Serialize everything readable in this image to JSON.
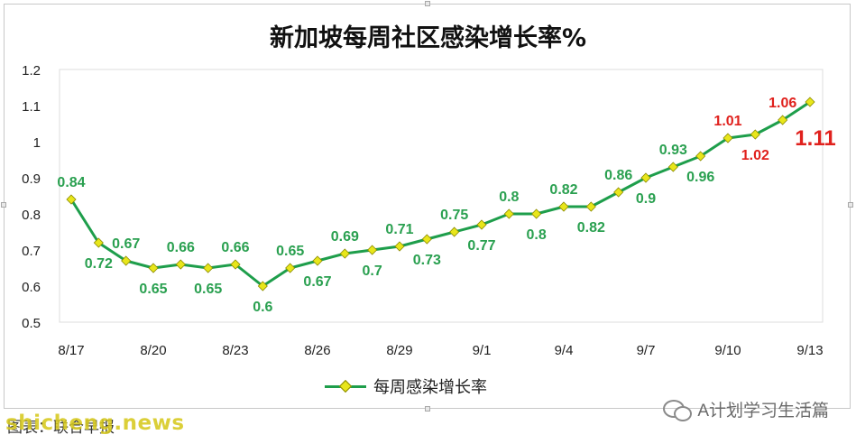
{
  "chart_data": {
    "type": "line",
    "title": "新加坡每周社区感染增长率%",
    "categories": [
      "8/17",
      "8/18",
      "8/19",
      "8/20",
      "8/21",
      "8/22",
      "8/23",
      "8/24",
      "8/25",
      "8/26",
      "8/27",
      "8/28",
      "8/29",
      "8/30",
      "8/31",
      "9/1",
      "9/2",
      "9/3",
      "9/4",
      "9/5",
      "9/6",
      "9/7",
      "9/8",
      "9/9",
      "9/10",
      "9/11",
      "9/12",
      "9/13"
    ],
    "x_tick_labels": [
      "8/17",
      "8/20",
      "8/23",
      "8/26",
      "8/29",
      "9/1",
      "9/4",
      "9/7",
      "9/10",
      "9/13"
    ],
    "y_tick_labels": [
      "0.5",
      "0.6",
      "0.7",
      "0.8",
      "0.9",
      "1",
      "1.1",
      "1.2"
    ],
    "ylim": [
      0.5,
      1.2
    ],
    "series": [
      {
        "name": "每周感染增长率",
        "values": [
          0.84,
          0.72,
          0.67,
          0.65,
          0.66,
          0.65,
          0.66,
          0.6,
          0.65,
          0.67,
          0.69,
          0.7,
          0.71,
          0.73,
          0.75,
          0.77,
          0.8,
          0.8,
          0.82,
          0.82,
          0.86,
          0.9,
          0.93,
          0.96,
          1.01,
          1.02,
          1.06,
          1.11
        ],
        "data_labels": [
          "0.84",
          "0.72",
          "0.67",
          "0.65",
          "0.66",
          "0.65",
          "0.66",
          "0.6",
          "0.65",
          "0.67",
          "0.69",
          "0.7",
          "0.71",
          "0.73",
          "0.75",
          "0.77",
          "0.8",
          "0.8",
          "0.82",
          "0.82",
          "0.86",
          "0.9",
          "0.93",
          "0.96",
          "1.01",
          "1.02",
          "1.06",
          "1.11"
        ]
      }
    ],
    "legend_position": "bottom",
    "grid": false
  },
  "colors": {
    "line": "#1e9e4b",
    "marker": "#e8e61a",
    "label_normal": "#2aa050",
    "label_highlight": "#e0211d"
  },
  "legend": {
    "label": "每周感染增长率"
  },
  "watermark": {
    "text": "A计划学习生活篇"
  },
  "source": {
    "text": "图表：联合早报"
  },
  "site_logo": {
    "text": "shicheng.news"
  }
}
